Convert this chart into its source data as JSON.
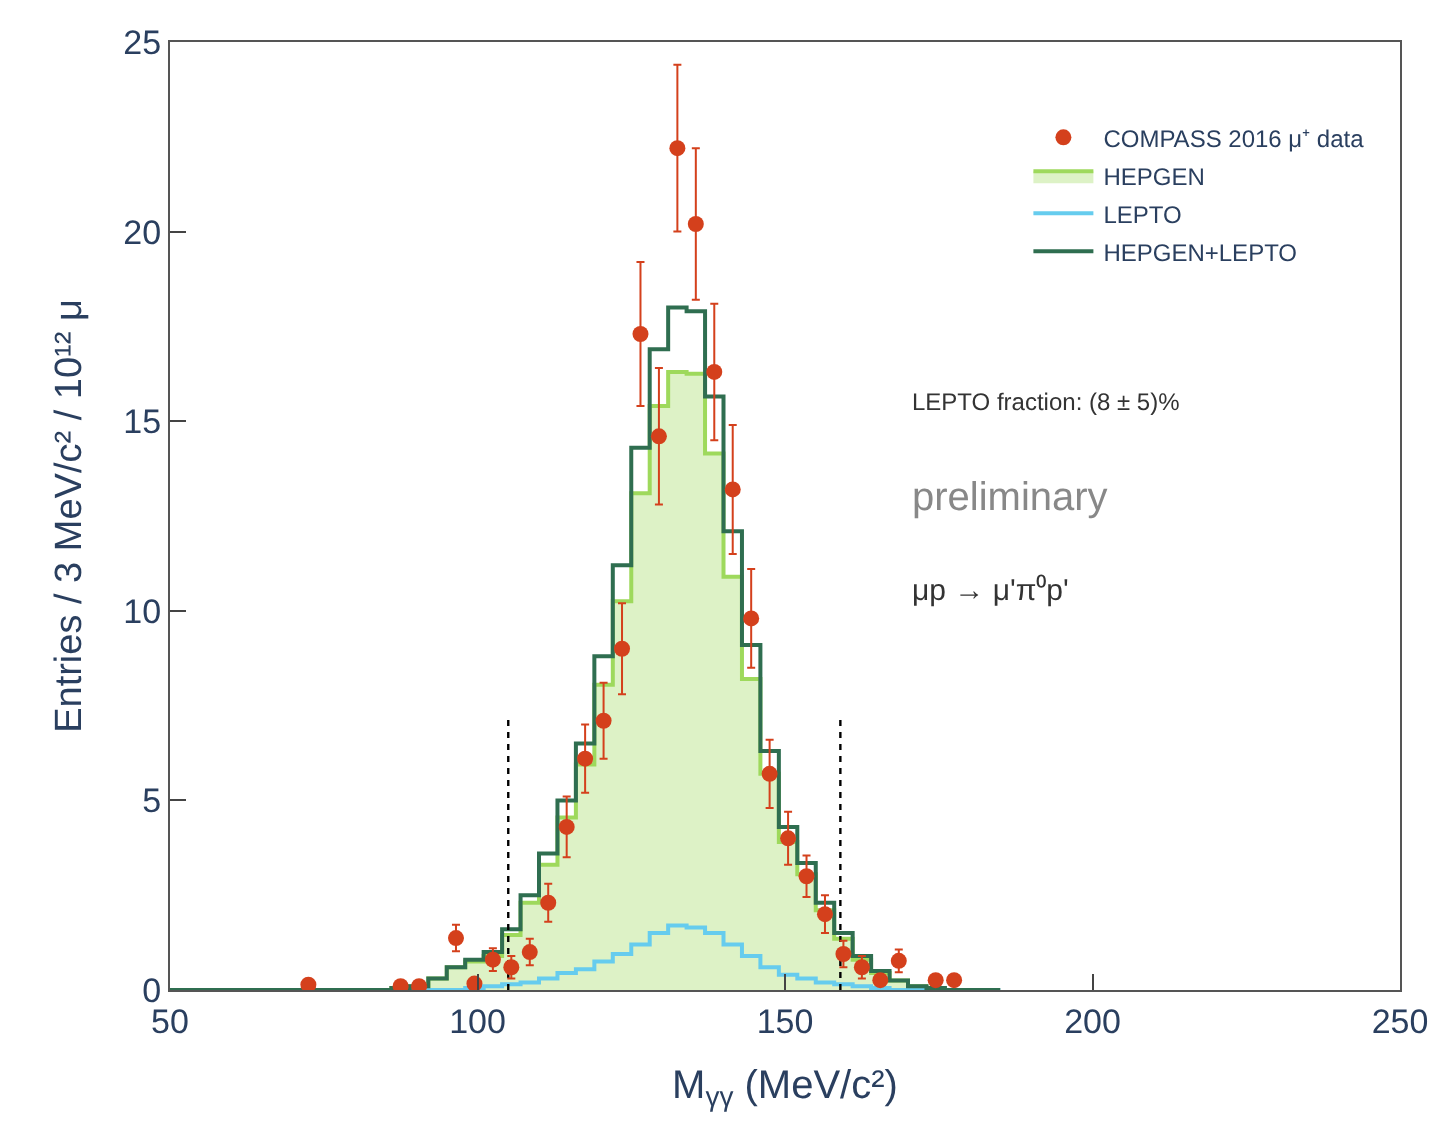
{
  "chart_data": {
    "type": "histogram",
    "xlabel": "M$_{γγ}$ (MeV/c²)",
    "ylabel": "Entries / 3 MeV/c² / 10¹² μ",
    "bins": [
      50,
      53,
      56,
      59,
      62,
      65,
      68,
      71,
      74,
      77,
      80,
      83,
      86,
      89,
      92,
      95,
      98,
      101,
      104,
      107,
      110,
      113,
      116,
      119,
      122,
      125,
      128,
      131,
      134,
      137,
      140,
      143,
      146,
      149,
      152,
      155,
      158,
      161,
      164,
      167,
      170,
      173,
      176,
      179,
      182,
      185
    ],
    "xlim": [
      50,
      250
    ],
    "xticks": [
      50,
      100,
      150,
      200,
      250
    ],
    "ylim": [
      0,
      25
    ],
    "yticks": [
      0,
      5,
      10,
      15,
      20,
      25
    ],
    "legend": "top right",
    "series": [
      {
        "name": "COMPASS 2016 μ⁺ data",
        "type": "scatter",
        "marker": "circle",
        "color": "#d4401c",
        "x": [
          72.5,
          87.5,
          90.5,
          96.5,
          99.5,
          102.5,
          105.5,
          108.5,
          111.5,
          114.5,
          117.5,
          120.5,
          123.5,
          126.5,
          129.5,
          132.5,
          135.5,
          138.5,
          141.5,
          144.5,
          147.5,
          150.5,
          153.5,
          156.5,
          159.5,
          162.5,
          165.5,
          168.5,
          174.5,
          177.5
        ],
        "values": [
          0.14,
          0.1,
          0.1,
          1.37,
          0.17,
          0.8,
          0.6,
          1.0,
          2.3,
          4.3,
          6.1,
          7.1,
          9.0,
          17.3,
          14.6,
          22.2,
          20.2,
          16.3,
          13.2,
          9.8,
          5.7,
          4.0,
          3.0,
          2.0,
          0.95,
          0.6,
          0.26,
          0.77,
          0.26,
          0.26
        ],
        "errors": [
          null,
          null,
          null,
          0.35,
          null,
          0.3,
          0.3,
          0.35,
          0.5,
          0.8,
          0.9,
          1.0,
          1.2,
          1.9,
          1.8,
          2.2,
          2.0,
          1.8,
          1.7,
          1.3,
          0.9,
          0.7,
          0.55,
          0.5,
          0.35,
          0.3,
          null,
          0.3,
          null,
          null
        ]
      },
      {
        "name": "HEPGEN",
        "type": "area",
        "color": "#9ed95c",
        "x": [
          51.5,
          54.5,
          57.5,
          60.5,
          63.5,
          66.5,
          69.5,
          72.5,
          75.5,
          78.5,
          81.5,
          84.5,
          87.5,
          90.5,
          93.5,
          96.5,
          99.5,
          102.5,
          105.5,
          108.5,
          111.5,
          114.5,
          117.5,
          120.5,
          123.5,
          126.5,
          129.5,
          132.5,
          135.5,
          138.5,
          141.5,
          144.5,
          147.5,
          150.5,
          153.5,
          156.5,
          159.5,
          162.5,
          165.5,
          168.5,
          171.5,
          174.5,
          177.5,
          180.5,
          183.5
        ],
        "values": [
          0,
          0,
          0,
          0,
          0,
          0,
          0,
          0,
          0,
          0,
          0,
          0,
          0.05,
          0.1,
          0.3,
          0.6,
          0.75,
          0.9,
          1.45,
          2.3,
          3.3,
          4.55,
          5.95,
          8.05,
          10.25,
          13.1,
          15.4,
          16.3,
          16.25,
          14.15,
          10.9,
          8.2,
          5.7,
          3.9,
          3.05,
          2.1,
          1.35,
          0.8,
          0.45,
          0.25,
          0.1,
          0.05,
          0,
          0,
          0
        ]
      },
      {
        "name": "LEPTO",
        "color": "#66ccee",
        "values": [
          0,
          0,
          0,
          0,
          0,
          0,
          0,
          0,
          0,
          0,
          0,
          0,
          0,
          0,
          0,
          0,
          0.05,
          0.1,
          0.15,
          0.2,
          0.3,
          0.45,
          0.55,
          0.75,
          0.95,
          1.2,
          1.5,
          1.7,
          1.65,
          1.5,
          1.2,
          0.9,
          0.6,
          0.4,
          0.3,
          0.2,
          0.15,
          0.1,
          0.05,
          0,
          0,
          0,
          0,
          0,
          0
        ]
      },
      {
        "name": "HEPGEN+LEPTO",
        "color": "#2f6e50",
        "values": [
          0,
          0,
          0,
          0,
          0,
          0,
          0,
          0,
          0,
          0,
          0,
          0,
          0.05,
          0.1,
          0.3,
          0.6,
          0.8,
          1.0,
          1.6,
          2.5,
          3.6,
          5.0,
          6.5,
          8.8,
          11.2,
          14.3,
          16.9,
          18.0,
          17.9,
          15.65,
          12.1,
          9.1,
          6.3,
          4.3,
          3.35,
          2.3,
          1.5,
          0.9,
          0.5,
          0.25,
          0.1,
          0.05,
          0,
          0,
          0
        ]
      },
      {
        "type": "line",
        "line_style": "dotted",
        "color": "#000000",
        "x": [
          105,
          105
        ],
        "values": [
          0,
          7.2
        ]
      },
      {
        "type": "line",
        "line_style": "dotted",
        "color": "#000000",
        "x": [
          159,
          159
        ],
        "values": [
          0,
          7.2
        ]
      }
    ],
    "annotations": [
      "LEPTO fraction: (8 ± 5)%",
      "preliminary",
      "μp → μ'π⁰p'"
    ]
  }
}
